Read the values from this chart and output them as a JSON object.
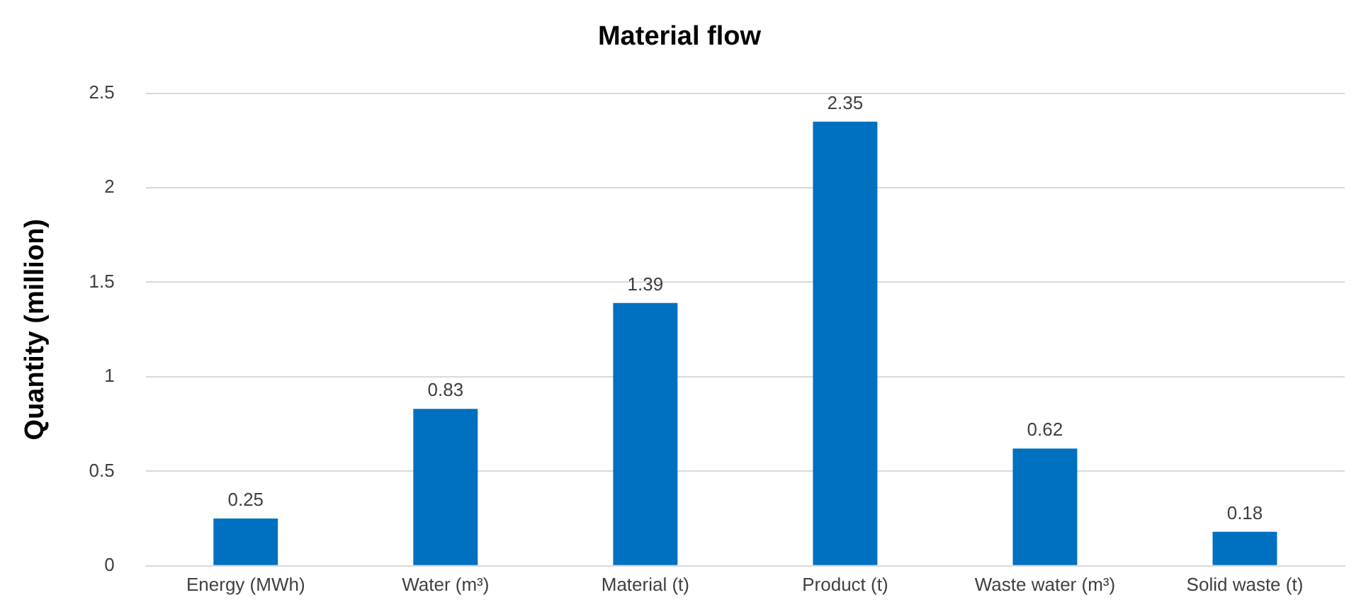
{
  "chart_data": {
    "type": "bar",
    "title": "Material flow",
    "ylabel": "Quantity (million)",
    "categories": [
      "Energy (MWh)",
      "Water (m³)",
      "Material (t)",
      "Product (t)",
      "Waste water (m³)",
      "Solid waste (t)"
    ],
    "values": [
      0.25,
      0.83,
      1.39,
      2.35,
      0.62,
      0.18
    ],
    "color": "#0070c0",
    "ylim": [
      0,
      2.5
    ],
    "yticks": [
      0,
      0.5,
      1,
      1.5,
      2,
      2.5
    ],
    "grid": "y",
    "data_labels": true
  }
}
